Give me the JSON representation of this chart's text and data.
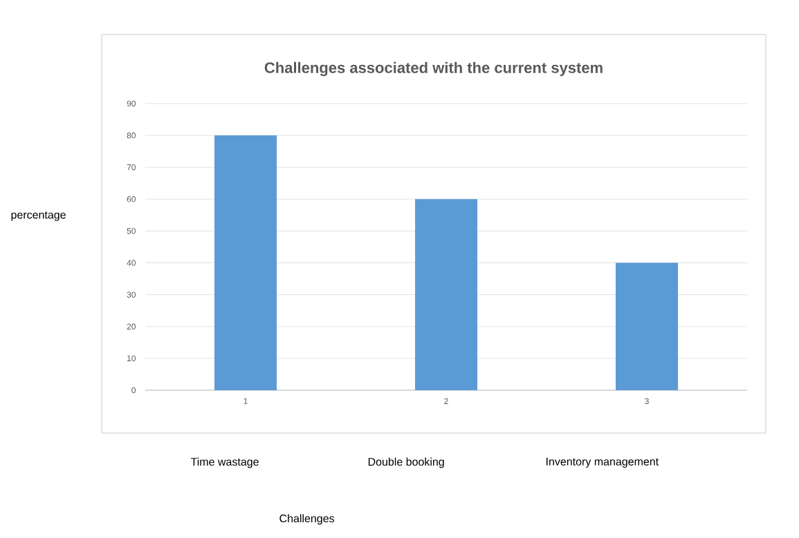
{
  "chart_data": {
    "type": "bar",
    "title": "Challenges associated with the current system",
    "categories": [
      "1",
      "2",
      "3"
    ],
    "values": [
      80,
      60,
      40
    ],
    "color": "#5b9bd5",
    "ylim": [
      0,
      90
    ],
    "yticks": [
      0,
      10,
      20,
      30,
      40,
      50,
      60,
      70,
      80,
      90
    ],
    "grid": "y",
    "annotations": [
      "percentage",
      "Time wastage",
      "Double booking",
      "Inventory management",
      "Challenges"
    ]
  }
}
